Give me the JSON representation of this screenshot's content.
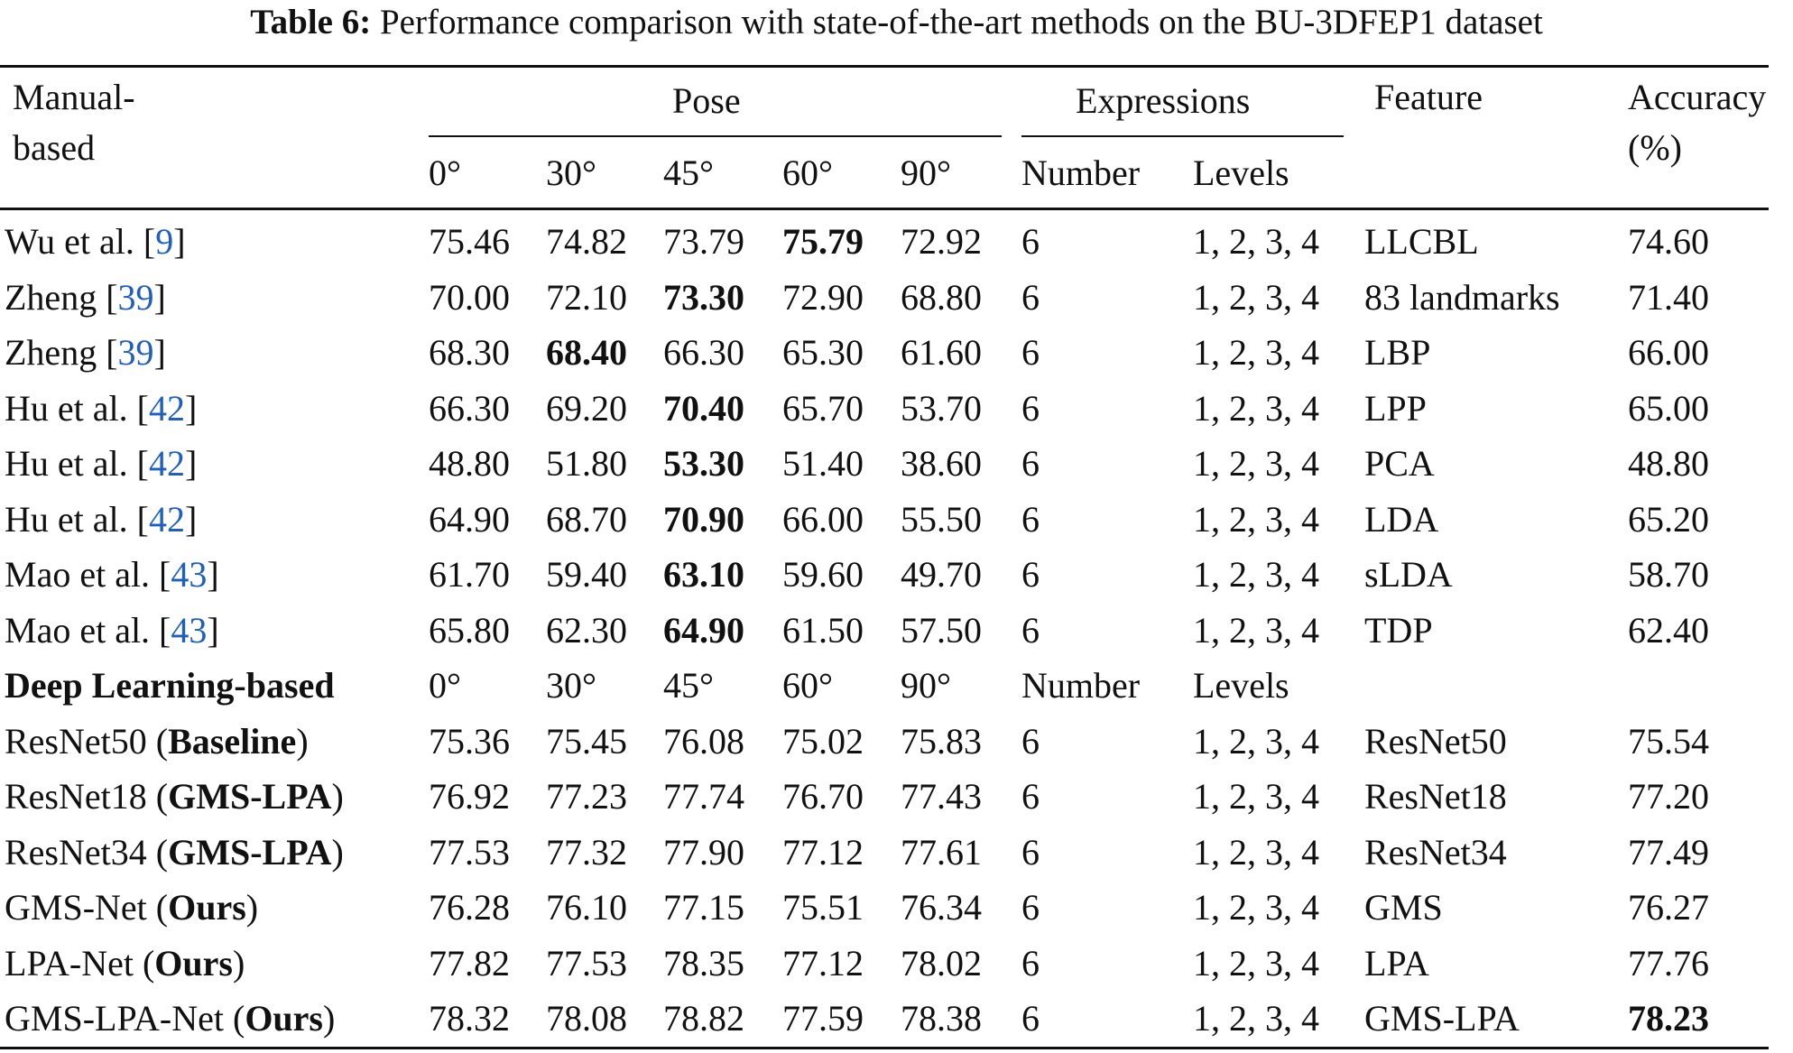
{
  "caption": {
    "label": "Table 6:",
    "text": "Performance comparison with state-of-the-art methods on the BU-3DFEP1 dataset"
  },
  "header": {
    "group1_line1": "Manual-",
    "group1_line2": "based",
    "pose": "Pose",
    "expressions": "Expressions",
    "feature": "Feature",
    "accuracy_line1": "Accuracy",
    "accuracy_line2": "(%)",
    "angles": [
      "0°",
      "30°",
      "45°",
      "60°",
      "90°"
    ],
    "number": "Number",
    "levels": "Levels"
  },
  "manual_rows": [
    {
      "name": "Wu et al. [",
      "ref": "9",
      "close": "]",
      "values": [
        "75.46",
        "74.82",
        "73.79",
        "75.79",
        "72.92"
      ],
      "bold": 3,
      "number": "6",
      "levels": "1, 2, 3, 4",
      "feature": "LLCBL",
      "accuracy": "74.60"
    },
    {
      "name": "Zheng [",
      "ref": "39",
      "close": "]",
      "values": [
        "70.00",
        "72.10",
        "73.30",
        "72.90",
        "68.80"
      ],
      "bold": 2,
      "number": "6",
      "levels": "1, 2, 3, 4",
      "feature": "83 landmarks",
      "accuracy": "71.40"
    },
    {
      "name": "Zheng [",
      "ref": "39",
      "close": "]",
      "values": [
        "68.30",
        "68.40",
        "66.30",
        "65.30",
        "61.60"
      ],
      "bold": 1,
      "number": "6",
      "levels": "1, 2, 3, 4",
      "feature": "LBP",
      "accuracy": "66.00"
    },
    {
      "name": "Hu et al. [",
      "ref": "42",
      "close": "]",
      "values": [
        "66.30",
        "69.20",
        "70.40",
        "65.70",
        "53.70"
      ],
      "bold": 2,
      "number": "6",
      "levels": "1, 2, 3, 4",
      "feature": "LPP",
      "accuracy": "65.00"
    },
    {
      "name": "Hu et al. [",
      "ref": "42",
      "close": "]",
      "values": [
        "48.80",
        "51.80",
        "53.30",
        "51.40",
        "38.60"
      ],
      "bold": 2,
      "number": "6",
      "levels": "1, 2, 3, 4",
      "feature": "PCA",
      "accuracy": "48.80"
    },
    {
      "name": "Hu et al. [",
      "ref": "42",
      "close": "]",
      "values": [
        "64.90",
        "68.70",
        "70.90",
        "66.00",
        "55.50"
      ],
      "bold": 2,
      "number": "6",
      "levels": "1, 2, 3, 4",
      "feature": "LDA",
      "accuracy": "65.20"
    },
    {
      "name": "Mao et al. [",
      "ref": "43",
      "close": "]",
      "values": [
        "61.70",
        "59.40",
        "63.10",
        "59.60",
        "49.70"
      ],
      "bold": 2,
      "number": "6",
      "levels": "1, 2, 3, 4",
      "feature": "sLDA",
      "accuracy": "58.70"
    },
    {
      "name": "Mao et al. [",
      "ref": "43",
      "close": "]",
      "values": [
        "65.80",
        "62.30",
        "64.90",
        "61.50",
        "57.50"
      ],
      "bold": 2,
      "number": "6",
      "levels": "1, 2, 3, 4",
      "feature": "TDP",
      "accuracy": "62.40"
    }
  ],
  "deep_header": {
    "label": "Deep Learning-based",
    "angles": [
      "0°",
      "30°",
      "45°",
      "60°",
      "90°"
    ],
    "number": "Number",
    "levels": "Levels"
  },
  "deep_rows": [
    {
      "name": "ResNet50 (",
      "tag": "Baseline",
      "close": ")",
      "values": [
        "75.36",
        "75.45",
        "76.08",
        "75.02",
        "75.83"
      ],
      "number": "6",
      "levels": "1, 2, 3, 4",
      "feature": "ResNet50",
      "accuracy": "75.54",
      "acc_bold": false
    },
    {
      "name": "ResNet18 (",
      "tag": "GMS-LPA",
      "close": ")",
      "values": [
        "76.92",
        "77.23",
        "77.74",
        "76.70",
        "77.43"
      ],
      "number": "6",
      "levels": "1, 2, 3, 4",
      "feature": "ResNet18",
      "accuracy": "77.20",
      "acc_bold": false
    },
    {
      "name": "ResNet34 (",
      "tag": "GMS-LPA",
      "close": ")",
      "values": [
        "77.53",
        "77.32",
        "77.90",
        "77.12",
        "77.61"
      ],
      "number": "6",
      "levels": "1, 2, 3, 4",
      "feature": "ResNet34",
      "accuracy": "77.49",
      "acc_bold": false
    },
    {
      "name": "GMS-Net (",
      "tag": "Ours",
      "close": ")",
      "values": [
        "76.28",
        "76.10",
        "77.15",
        "75.51",
        "76.34"
      ],
      "number": "6",
      "levels": "1, 2, 3, 4",
      "feature": "GMS",
      "accuracy": "76.27",
      "acc_bold": false
    },
    {
      "name": "LPA-Net (",
      "tag": "Ours",
      "close": ")",
      "values": [
        "77.82",
        "77.53",
        "78.35",
        "77.12",
        "78.02"
      ],
      "number": "6",
      "levels": "1, 2, 3, 4",
      "feature": "LPA",
      "accuracy": "77.76",
      "acc_bold": false
    },
    {
      "name": "GMS-LPA-Net (",
      "tag": "Ours",
      "close": ")",
      "values": [
        "78.32",
        "78.08",
        "78.82",
        "77.59",
        "78.38"
      ],
      "number": "6",
      "levels": "1, 2, 3, 4",
      "feature": "GMS-LPA",
      "accuracy": "78.23",
      "acc_bold": true
    }
  ]
}
